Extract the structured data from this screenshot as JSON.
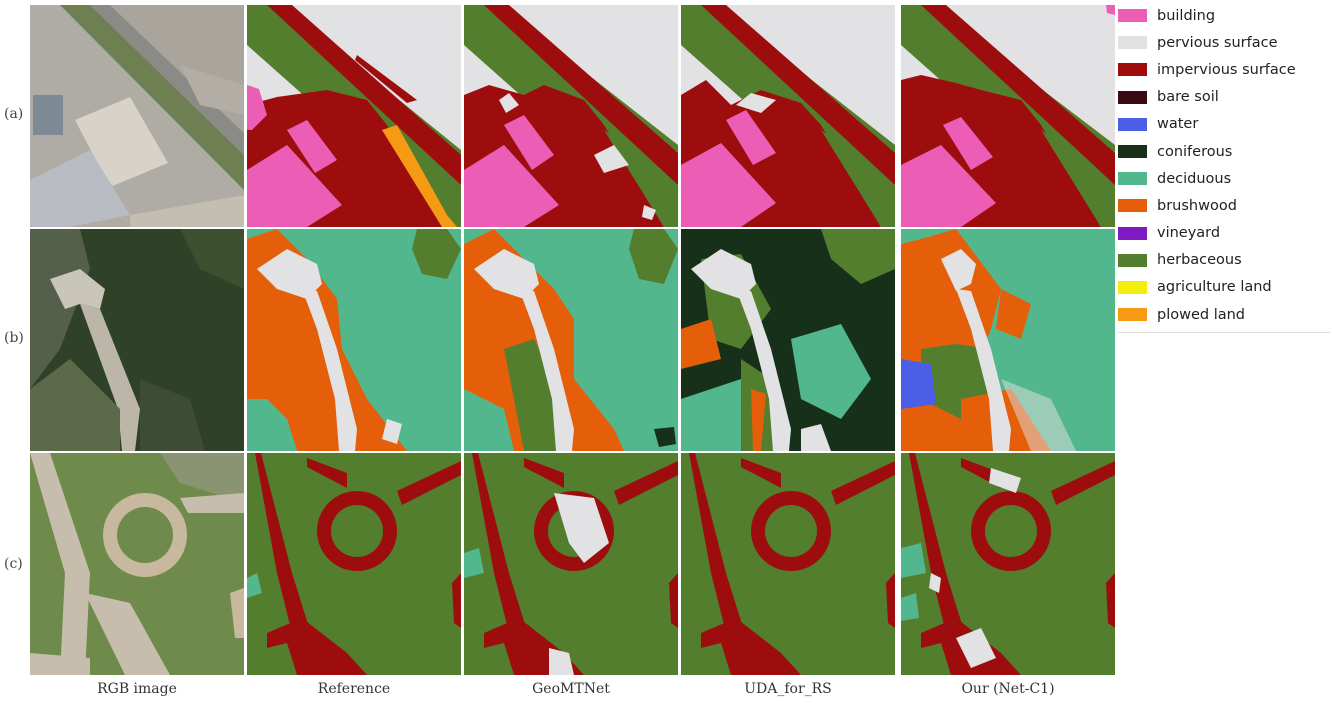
{
  "rows": [
    {
      "label": "(a)"
    },
    {
      "label": "(b)"
    },
    {
      "label": "(c)"
    }
  ],
  "columns": [
    {
      "label": "RGB image"
    },
    {
      "label": "Reference"
    },
    {
      "label": "GeoMTNet"
    },
    {
      "label": "UDA_for_RS"
    },
    {
      "label": "Our (Net-C1)"
    }
  ],
  "legend": [
    {
      "label": "building",
      "color": "#ec5db5"
    },
    {
      "label": "pervious surface",
      "color": "#e2e2e4"
    },
    {
      "label": "impervious surface",
      "color": "#9e0d0e"
    },
    {
      "label": "bare soil",
      "color": "#3a0a14"
    },
    {
      "label": "water",
      "color": "#4b5ee6"
    },
    {
      "label": "coniferous",
      "color": "#16301a"
    },
    {
      "label": "deciduous",
      "color": "#52b78c"
    },
    {
      "label": "brushwood",
      "color": "#e55f0b"
    },
    {
      "label": "vineyard",
      "color": "#7e19c4"
    },
    {
      "label": "herbaceous",
      "color": "#537e2e"
    },
    {
      "label": "agriculture land",
      "color": "#f3ec0c"
    },
    {
      "label": "plowed land",
      "color": "#f59a12"
    }
  ]
}
